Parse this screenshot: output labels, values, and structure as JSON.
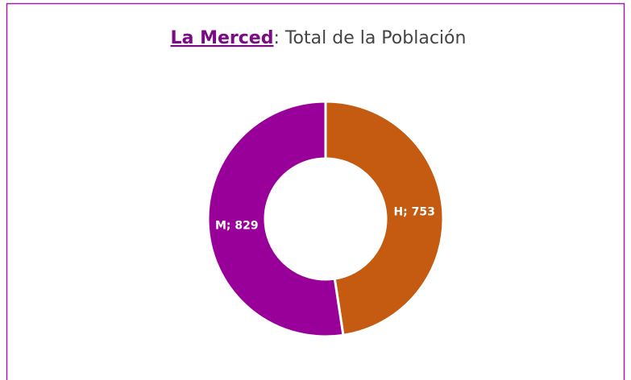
{
  "chart_data": {
    "type": "donut",
    "title_emphasis": "La Merced",
    "title": ": Total de la Población",
    "values": [
      753,
      829
    ],
    "value_labels": [
      "H; 753",
      "M; 829"
    ],
    "colors": [
      "#c55a11",
      "#990099"
    ]
  }
}
